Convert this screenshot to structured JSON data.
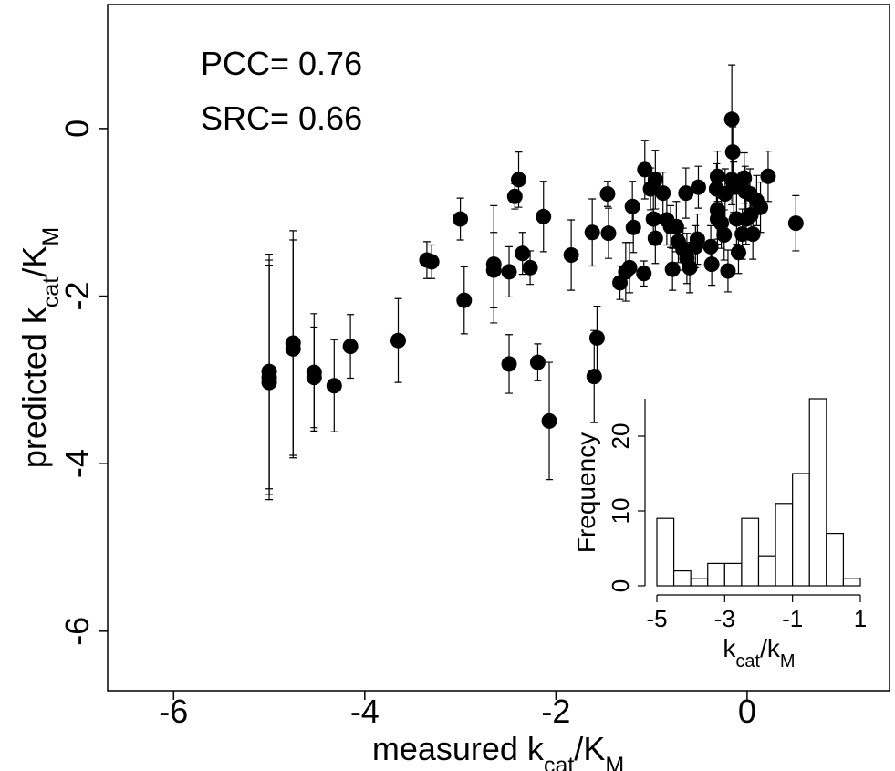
{
  "chart_data": [
    {
      "type": "scatter",
      "x_label": [
        {
          "text": "measured k"
        },
        {
          "text": "cat",
          "sub": true
        },
        {
          "text": "/"
        },
        {
          "text": "K"
        },
        {
          "text": "M",
          "sub": true
        }
      ],
      "y_label": [
        {
          "text": "predicted k"
        },
        {
          "text": "cat",
          "sub": true
        },
        {
          "text": "/"
        },
        {
          "text": "K"
        },
        {
          "text": "M",
          "sub": true
        }
      ],
      "annotations": [
        "PCC= 0.76",
        "SRC= 0.66"
      ],
      "color": "#000000",
      "xlim": [
        -6.69,
        1.49
      ],
      "ylim": [
        -6.71,
        1.48
      ],
      "xticks": [
        -6,
        -4,
        -2,
        0
      ],
      "yticks": [
        -6,
        -4,
        -2,
        0
      ],
      "x": [
        -5.0,
        -5.0,
        -5.0,
        -4.75,
        -4.75,
        -4.53,
        -4.53,
        -4.32,
        -4.15,
        -3.65,
        -3.35,
        -3.3,
        -3.0,
        -2.96,
        -2.65,
        -2.65,
        -2.49,
        -2.49,
        -2.43,
        -2.39,
        -2.35,
        -2.27,
        -2.19,
        -2.13,
        -2.07,
        -1.84,
        -1.6,
        -1.57,
        -1.62,
        -1.46,
        -1.45,
        -1.33,
        -1.27,
        -1.23,
        -1.2,
        -1.19,
        -1.08,
        -1.07,
        -1.01,
        -0.98,
        -0.96,
        -0.96,
        -0.88,
        -0.84,
        -0.8,
        -0.78,
        -0.74,
        -0.72,
        -0.67,
        -0.63,
        -0.64,
        -0.6,
        -0.54,
        -0.51,
        -0.52,
        -0.38,
        -0.37,
        -0.32,
        -0.31,
        -0.31,
        -0.31,
        -0.27,
        -0.23,
        -0.24,
        -0.2,
        -0.16,
        -0.15,
        -0.16,
        -0.14,
        -0.11,
        -0.09,
        -0.05,
        -0.03,
        -0.02,
        -0.01,
        0.03,
        0.04,
        0.06,
        0.1,
        0.14,
        0.22,
        0.51
      ],
      "y": [
        -2.9,
        -2.97,
        -3.03,
        -2.56,
        -2.63,
        -2.91,
        -2.97,
        -3.07,
        -2.6,
        -2.53,
        -1.57,
        -1.59,
        -1.08,
        -2.05,
        -1.62,
        -1.69,
        -1.71,
        -2.81,
        -0.81,
        -0.61,
        -1.49,
        -1.66,
        -2.79,
        -1.05,
        -3.49,
        -1.51,
        -2.96,
        -2.5,
        -1.24,
        -0.78,
        -1.25,
        -1.84,
        -1.71,
        -1.66,
        -0.93,
        -1.18,
        -1.73,
        -0.49,
        -0.72,
        -1.08,
        -0.61,
        -1.31,
        -0.77,
        -1.09,
        -1.17,
        -1.68,
        -1.17,
        -1.35,
        -1.44,
        -1.55,
        -0.77,
        -1.66,
        -1.41,
        -0.7,
        -1.32,
        -1.41,
        -1.62,
        -0.72,
        -0.57,
        -0.97,
        -1.08,
        -1.13,
        -0.78,
        -1.27,
        -1.7,
        0.11,
        -0.28,
        -0.61,
        -0.7,
        -1.08,
        -1.48,
        -1.26,
        -0.59,
        -0.75,
        -1.08,
        -0.78,
        -1.03,
        -1.26,
        -0.86,
        -0.94,
        -0.57,
        -1.13
      ],
      "errors": [
        1.4,
        1.4,
        1.4,
        1.34,
        1.3,
        0.7,
        0.6,
        0.55,
        0.38,
        0.5,
        0.22,
        0.2,
        0.25,
        0.4,
        0.7,
        0.45,
        0.3,
        0.35,
        0.15,
        0.33,
        0.25,
        0.2,
        0.22,
        0.42,
        0.7,
        0.42,
        0.55,
        0.38,
        0.4,
        0.15,
        0.3,
        0.2,
        0.35,
        0.3,
        0.3,
        0.3,
        0.15,
        0.35,
        0.25,
        0.3,
        0.35,
        0.3,
        0.25,
        0.3,
        0.25,
        0.25,
        0.3,
        0.25,
        0.25,
        0.3,
        0.3,
        0.3,
        0.25,
        0.25,
        0.3,
        0.25,
        0.25,
        0.3,
        0.3,
        0.35,
        0.3,
        0.3,
        0.3,
        0.3,
        0.25,
        0.65,
        0.3,
        0.3,
        0.3,
        0.3,
        0.25,
        0.3,
        0.3,
        0.3,
        0.3,
        0.3,
        0.3,
        0.3,
        0.3,
        0.3,
        0.3,
        0.33
      ]
    },
    {
      "type": "histogram",
      "x_label": [
        {
          "text": "k"
        },
        {
          "text": "cat",
          "sub": true
        },
        {
          "text": "/"
        },
        {
          "text": "k"
        },
        {
          "text": "M",
          "sub": true
        }
      ],
      "y_label": [
        {
          "text": "Frequency"
        }
      ],
      "color": "#ffffff",
      "bins": [
        -5,
        -4.5,
        -4,
        -3.5,
        -3,
        -2.5,
        -2,
        -1.5,
        -1,
        -0.5,
        0,
        0.5,
        1
      ],
      "values": [
        9,
        2,
        1,
        3,
        3,
        9,
        4,
        11,
        15,
        25,
        7,
        1
      ],
      "xlim": [
        -5,
        1
      ],
      "ylim": [
        0,
        25
      ],
      "xticks": [
        -5,
        -3,
        -1,
        1
      ],
      "yticks": [
        0,
        10,
        20
      ]
    }
  ]
}
